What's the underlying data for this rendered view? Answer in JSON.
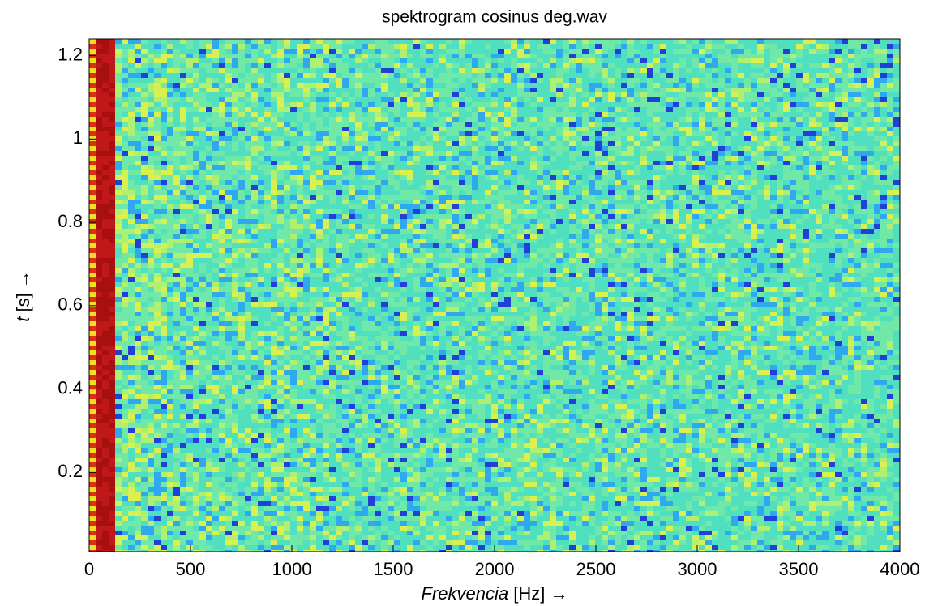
{
  "chart_data": {
    "type": "spectrogram",
    "title": "spektrogram cosinus deg.wav",
    "xlabel": [
      "Frekvencia",
      "[Hz] →"
    ],
    "ylabel": [
      "t",
      "[s] →"
    ],
    "xlim": [
      0,
      4000
    ],
    "xticks": [
      0,
      500,
      1000,
      1500,
      2000,
      2500,
      3000,
      3500,
      4000
    ],
    "ylim": [
      0.01,
      1.24
    ],
    "yticks": [
      0.2,
      0.4,
      0.6,
      0.8,
      1,
      1.2
    ]
  }
}
